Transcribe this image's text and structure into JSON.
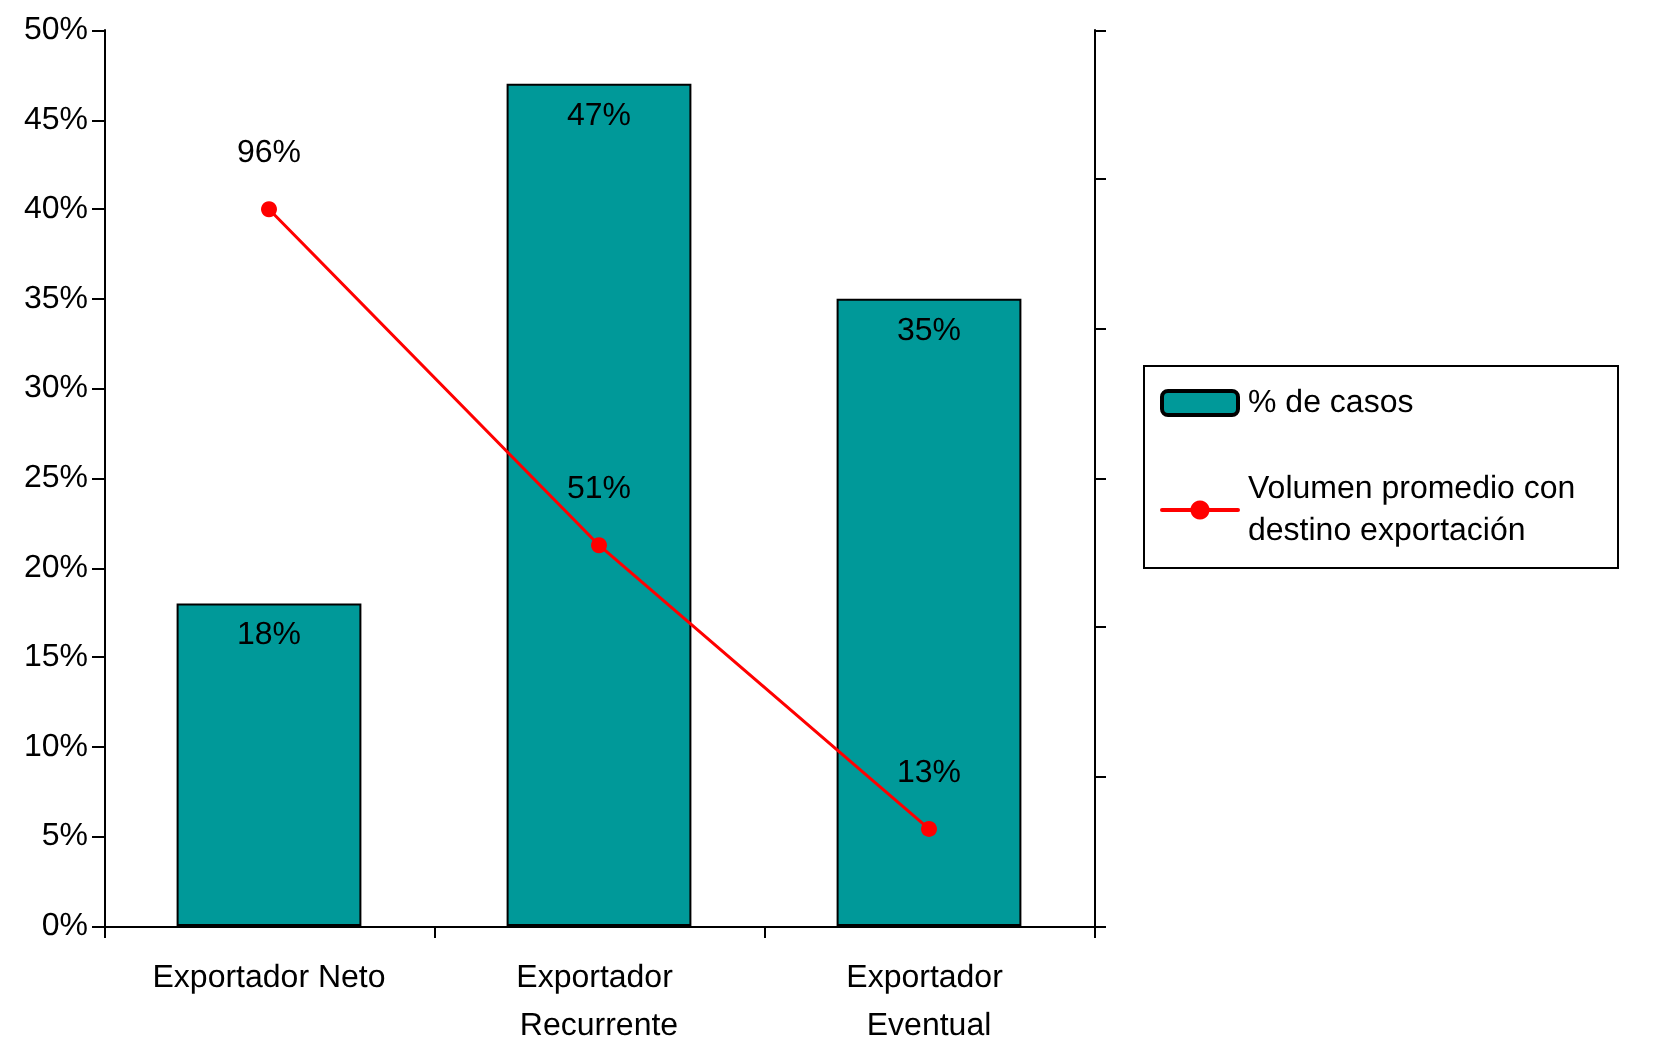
{
  "chart_data": {
    "type": "bar",
    "categories": [
      "Exportador Neto",
      "Exportador Recurrente",
      "Exportador Eventual"
    ],
    "series": [
      {
        "name": "% de casos",
        "color": "#009999",
        "values": [
          18,
          47,
          35
        ],
        "value_labels": [
          "18%",
          "47%",
          "35%"
        ]
      },
      {
        "name": "Volumen promedio con destino exportación",
        "type": "line",
        "axis": "y2",
        "color": "#ff0000",
        "values": [
          96,
          51,
          13
        ],
        "value_labels": [
          "96%",
          "51%",
          "13%"
        ]
      }
    ],
    "ylim": [
      0,
      50
    ],
    "yticks": [
      {
        "value": 0,
        "label": "0%"
      },
      {
        "value": 5,
        "label": "5%"
      },
      {
        "value": 10,
        "label": "10%"
      },
      {
        "value": 15,
        "label": "15%"
      },
      {
        "value": 20,
        "label": "20%"
      },
      {
        "value": 25,
        "label": "25%"
      },
      {
        "value": 30,
        "label": "30%"
      },
      {
        "value": 35,
        "label": "35%"
      },
      {
        "value": 40,
        "label": "40%"
      },
      {
        "value": 45,
        "label": "45%"
      },
      {
        "value": 50,
        "label": "50%"
      }
    ],
    "y2lim": [
      0,
      120
    ],
    "y2ticks": [
      {
        "value": 0,
        "label": null
      },
      {
        "value": 20,
        "label": null
      },
      {
        "value": 40,
        "label": null
      },
      {
        "value": 60,
        "label": null
      },
      {
        "value": 80,
        "label": null
      },
      {
        "value": 100,
        "label": null
      },
      {
        "value": 120,
        "label": null
      }
    ],
    "marker": "circle",
    "line_style": "solid",
    "grid": false,
    "legend": "right"
  }
}
